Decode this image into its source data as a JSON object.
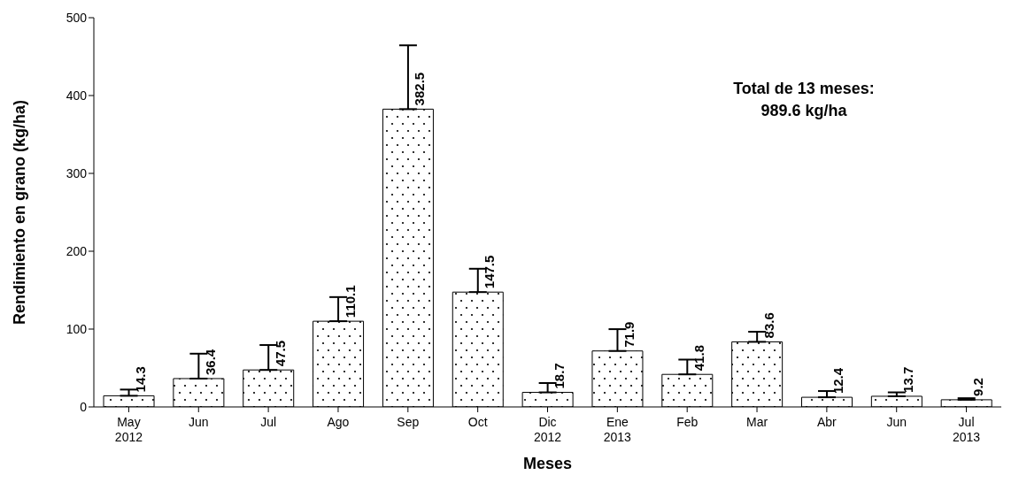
{
  "chart_data": {
    "type": "bar",
    "xlabel": "Meses",
    "ylabel": "Rendimiento en grano (kg/ha)",
    "categories": [
      "May\n2012",
      "Jun",
      "Jul",
      "Ago",
      "Sep",
      "Oct",
      "Dic\n2012",
      "Ene\n2013",
      "Feb",
      "Mar",
      "Abr",
      "Jun",
      "Jul\n2013"
    ],
    "values": [
      14.3,
      36.4,
      47.5,
      110.1,
      382.5,
      147.5,
      18.7,
      71.9,
      41.8,
      83.6,
      12.4,
      13.7,
      9.2
    ],
    "errors": [
      8,
      32,
      32,
      31,
      82,
      30,
      12,
      28,
      19,
      13,
      8,
      5,
      2
    ],
    "color": "#000000",
    "data_labels": true,
    "ylim": [
      0,
      500
    ],
    "yticks": [
      0,
      100,
      200,
      300,
      400,
      500
    ],
    "annotations": [
      "Total de 13 meses:\n989.6 kg/ha"
    ]
  }
}
